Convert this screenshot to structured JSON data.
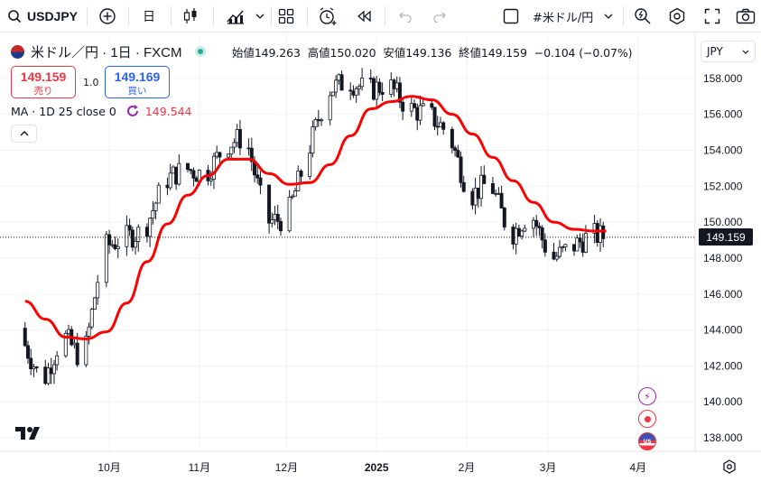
{
  "toolbar": {
    "symbol": "USDJPY",
    "interval": "日",
    "symbol_menu": "#米ドル/円"
  },
  "legend": {
    "title": "米ドル／円 · 1日 · FXCM",
    "open_label": "始値",
    "open": "149.263",
    "high_label": "高値",
    "high": "150.020",
    "low_label": "安値",
    "low": "149.136",
    "close_label": "終値",
    "close": "149.159",
    "change": "−0.104 (−0.07%)"
  },
  "trade": {
    "sell_price": "149.159",
    "sell_label": "売り",
    "buy_price": "149.169",
    "buy_label": "買い",
    "quantity": "1.0"
  },
  "indicator": {
    "label": "MA · 1D 25 close 0",
    "value": "149.544",
    "color": "#f23645"
  },
  "currency": "JPY",
  "last_price_tag": "149.159",
  "colors": {
    "candle": "#131722",
    "ma_line": "#ff0000",
    "sell": "#f23645",
    "buy": "#2962ff",
    "grid": "#f0f3fa"
  },
  "chart_data": {
    "type": "line",
    "title": "米ドル／円 · 1日 · FXCM",
    "y_ticks": [
      "138.000",
      "140.000",
      "142.000",
      "144.000",
      "146.000",
      "148.000",
      "150.000",
      "152.000",
      "154.000",
      "156.000",
      "158.000"
    ],
    "ylim": [
      137.3,
      160.5
    ],
    "x_ticks": [
      "10月",
      "11月",
      "12月",
      "2025",
      "2月",
      "3月",
      "4月"
    ],
    "x": [
      "2024-09-02",
      "2024-09-09",
      "2024-09-16",
      "2024-09-23",
      "2024-09-30",
      "2024-10-07",
      "2024-10-14",
      "2024-10-21",
      "2024-10-28",
      "2024-11-04",
      "2024-11-11",
      "2024-11-18",
      "2024-11-25",
      "2024-12-02",
      "2024-12-09",
      "2024-12-16",
      "2024-12-23",
      "2024-12-30",
      "2025-01-06",
      "2025-01-13",
      "2025-01-20",
      "2025-01-27",
      "2025-02-03",
      "2025-02-10",
      "2025-02-17",
      "2025-02-24",
      "2025-03-03",
      "2025-03-10",
      "2025-03-17",
      "2025-03-21"
    ],
    "series": [
      {
        "name": "USDJPY close",
        "values": [
          143.5,
          141.0,
          143.8,
          142.2,
          148.6,
          149.1,
          149.5,
          152.3,
          153.0,
          152.6,
          154.3,
          154.8,
          150.0,
          150.2,
          153.7,
          157.3,
          157.9,
          157.3,
          157.7,
          156.3,
          156.0,
          154.9,
          151.4,
          152.3,
          149.2,
          150.6,
          147.9,
          148.6,
          149.3,
          149.2
        ]
      },
      {
        "name": "MA · 1D 25 close 0",
        "values": [
          145.6,
          144.6,
          143.6,
          143.5,
          143.9,
          145.5,
          147.8,
          149.9,
          151.5,
          152.6,
          153.5,
          153.5,
          152.7,
          152.1,
          152.2,
          153.2,
          154.8,
          156.3,
          156.7,
          157.0,
          156.8,
          156.0,
          154.9,
          153.6,
          152.3,
          151.1,
          150.0,
          149.6,
          149.5,
          149.5
        ]
      }
    ],
    "grid": true,
    "legend": "top-left"
  },
  "event_markers": [
    "⚡",
    "●",
    "US"
  ]
}
